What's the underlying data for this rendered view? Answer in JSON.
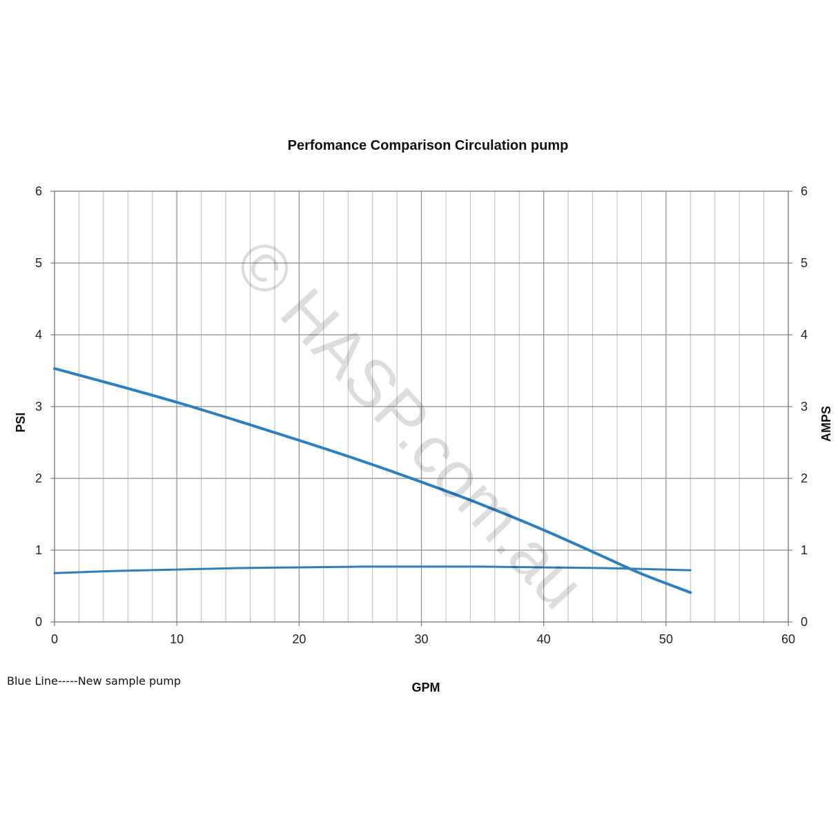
{
  "chart_data": {
    "type": "line",
    "title": "Perfomance Comparison Circulation pump",
    "xlabel": "GPM",
    "ylabel_left": "PSI",
    "ylabel_right": "AMPS",
    "xlim": [
      0,
      60
    ],
    "ylim_left": [
      0,
      6
    ],
    "ylim_right": [
      0,
      6
    ],
    "x_ticks": [
      "0",
      "10",
      "20",
      "30",
      "40",
      "50",
      "60"
    ],
    "y_ticks_left": [
      "0",
      "1",
      "2",
      "3",
      "4",
      "5",
      "6"
    ],
    "y_ticks_right": [
      "0",
      "1",
      "2",
      "3",
      "4",
      "5",
      "6"
    ],
    "grid": true,
    "minor_x_step": 2,
    "line_color": "#2b7fc1",
    "series": [
      {
        "axis": "left",
        "width": "thick",
        "x": [
          0,
          5,
          10,
          15,
          20,
          25,
          30,
          35,
          40,
          45,
          48,
          52
        ],
        "y": [
          3.53,
          3.3,
          3.06,
          2.8,
          2.53,
          2.25,
          1.95,
          1.63,
          1.28,
          0.9,
          0.67,
          0.41
        ]
      },
      {
        "axis": "right",
        "width": "thin",
        "x": [
          0,
          5,
          10,
          15,
          20,
          25,
          30,
          35,
          40,
          45,
          52
        ],
        "y": [
          0.68,
          0.71,
          0.73,
          0.75,
          0.76,
          0.77,
          0.77,
          0.77,
          0.76,
          0.75,
          0.72
        ]
      }
    ]
  },
  "note": "Blue Line-----New sample pump",
  "watermark": "© HASP.com.au"
}
